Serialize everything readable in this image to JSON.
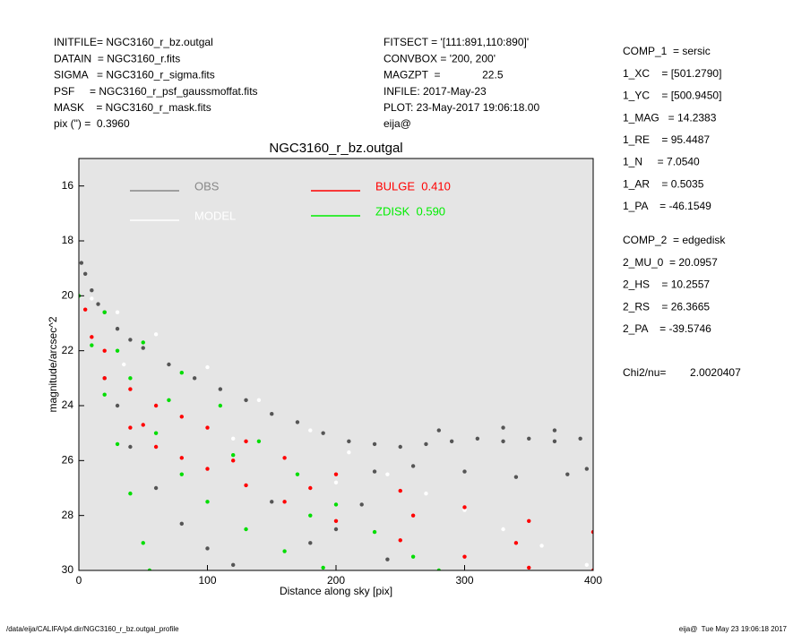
{
  "header_left": [
    "INITFILE= NGC3160_r_bz.outgal",
    "DATAIN  = NGC3160_r.fits",
    "SIGMA   = NGC3160_r_sigma.fits",
    "PSF     = NGC3160_r_psf_gaussmoffat.fits",
    "MASK    = NGC3160_r_mask.fits",
    "pix (\") =  0.3960"
  ],
  "header_mid": [
    "FITSECT = '[111:891,110:890]'",
    "CONVBOX = '200, 200'",
    "MAGZPT  =              22.5",
    "INFILE: 2017-May-23",
    "PLOT: 23-May-2017 19:06:18.00",
    "eija@"
  ],
  "params_1": [
    "COMP_1  = sersic",
    "1_XC    = [501.2790]",
    "1_YC    = [500.9450]",
    "1_MAG   = 14.2383",
    "1_RE    = 95.4487",
    "1_N     = 7.0540",
    "1_AR    = 0.5035",
    "1_PA    = -46.1549"
  ],
  "params_2": [
    "COMP_2  = edgedisk",
    "2_MU_0  = 20.0957",
    "2_HS    = 10.2557",
    "2_RS    = 26.3665",
    "2_PA    = -39.5746"
  ],
  "chi2": "Chi2/nu=        2.0020407",
  "footer_left": "/data/eija/CALIFA/p4.dir/NGC3160_r_bz.outgal_profile",
  "footer_right": "eija@  Tue May 23 19:06:18 2017",
  "chart_data": {
    "type": "scatter",
    "title": "NGC3160_r_bz.outgal",
    "x_label": "Distance along sky [pix]",
    "y_label": "magnitude/arcsec^2",
    "xlim": [
      0,
      400
    ],
    "ylim": [
      30,
      15
    ],
    "xticks": [
      0,
      100,
      200,
      300,
      400
    ],
    "yticks": [
      16,
      18,
      20,
      22,
      24,
      26,
      28,
      30
    ],
    "background": "#e5e5e5",
    "series": [
      {
        "name": "OBS",
        "color": "#555555",
        "legend_color": "#888888",
        "x": [
          2,
          5,
          10,
          15,
          20,
          30,
          40,
          50,
          70,
          90,
          110,
          130,
          150,
          170,
          190,
          210,
          230,
          250,
          270,
          290,
          310,
          330,
          350,
          370,
          390,
          260,
          300,
          340,
          380,
          395,
          230,
          40,
          60,
          80,
          100,
          120,
          150,
          180,
          200,
          220,
          330,
          370,
          280,
          240,
          30,
          20
        ],
        "values": [
          18.8,
          19.2,
          19.8,
          20.3,
          20.6,
          21.2,
          21.6,
          21.9,
          22.5,
          23.0,
          23.4,
          23.8,
          24.3,
          24.6,
          25.0,
          25.3,
          25.4,
          25.5,
          25.4,
          25.3,
          25.2,
          25.3,
          25.2,
          25.3,
          25.2,
          26.2,
          26.4,
          26.6,
          26.5,
          26.3,
          26.4,
          25.5,
          27.0,
          28.3,
          29.2,
          29.8,
          27.5,
          29.0,
          28.5,
          27.6,
          24.8,
          24.9,
          24.9,
          29.6,
          24.0,
          23.0
        ]
      },
      {
        "name": "MODEL",
        "color": "#ffffff",
        "legend_color": "#ffffff",
        "x": [
          10,
          30,
          60,
          100,
          140,
          180,
          210,
          240,
          270,
          300,
          330,
          360,
          395,
          35,
          120,
          200
        ],
        "values": [
          20.1,
          20.6,
          21.4,
          22.6,
          23.8,
          24.9,
          25.7,
          26.5,
          27.2,
          27.8,
          28.5,
          29.1,
          29.8,
          22.5,
          25.2,
          26.8
        ]
      },
      {
        "name": "BULGE  0.410",
        "color": "#ff0000",
        "legend_color": "#ff0000",
        "x": [
          20,
          40,
          60,
          80,
          100,
          130,
          160,
          200,
          250,
          300,
          350,
          400,
          20,
          40,
          60,
          80,
          100,
          130,
          160,
          200,
          250,
          300,
          350,
          400,
          50,
          120,
          180,
          260,
          340,
          5,
          10
        ],
        "values": [
          22,
          23.4,
          24.0,
          24.4,
          24.8,
          25.3,
          25.9,
          26.5,
          27.1,
          27.7,
          28.2,
          28.6,
          23,
          24.8,
          25.5,
          25.9,
          26.3,
          26.9,
          27.5,
          28.2,
          28.9,
          29.5,
          29.9,
          30,
          24.7,
          26,
          27,
          28,
          29,
          20.5,
          21.5
        ]
      },
      {
        "name": "ZDISK  0.590",
        "color": "#00dd00",
        "legend_color": "#00ee00",
        "x": [
          0,
          10,
          20,
          30,
          40,
          50,
          55,
          20,
          50,
          80,
          110,
          140,
          170,
          200,
          230,
          260,
          280,
          40,
          60,
          80,
          100,
          130,
          160,
          190,
          30,
          70,
          120,
          180
        ],
        "values": [
          20,
          21.8,
          23.6,
          25.4,
          27.2,
          29,
          30,
          20.6,
          21.7,
          22.8,
          24,
          25.3,
          26.5,
          27.6,
          28.6,
          29.5,
          30,
          23,
          25,
          26.5,
          27.5,
          28.5,
          29.3,
          29.9,
          22,
          23.8,
          25.8,
          28
        ]
      }
    ]
  }
}
